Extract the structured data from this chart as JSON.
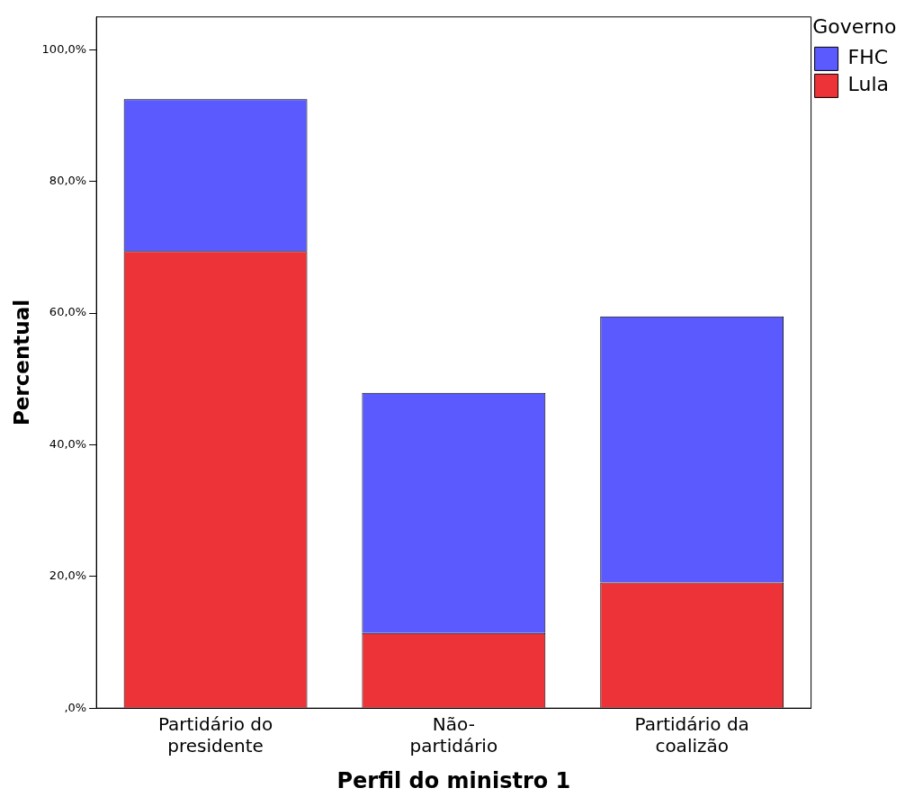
{
  "chart_data": {
    "type": "bar",
    "stacked": true,
    "xlabel": "Perfil do ministro 1",
    "ylabel": "Percentual",
    "legend_title": "Governo",
    "legend": "top right",
    "categories": [
      "Partidário do presidente",
      "Não-partidário",
      "Partidário da coalizão"
    ],
    "series": [
      {
        "name": "Lula",
        "color": "#ee3338",
        "values": [
          69.4,
          11.4,
          19.1
        ]
      },
      {
        "name": "FHC",
        "color": "#5a5aff",
        "values": [
          23.1,
          36.5,
          40.4
        ]
      }
    ],
    "ylim": [
      0,
      105
    ],
    "yticks": [
      {
        "value": 0,
        "label": ",0%"
      },
      {
        "value": 20,
        "label": "20,0%"
      },
      {
        "value": 40,
        "label": "40,0%"
      },
      {
        "value": 60,
        "label": "60,0%"
      },
      {
        "value": 80,
        "label": "80,0%"
      },
      {
        "value": 100,
        "label": "100,0%"
      }
    ],
    "grid": false
  }
}
